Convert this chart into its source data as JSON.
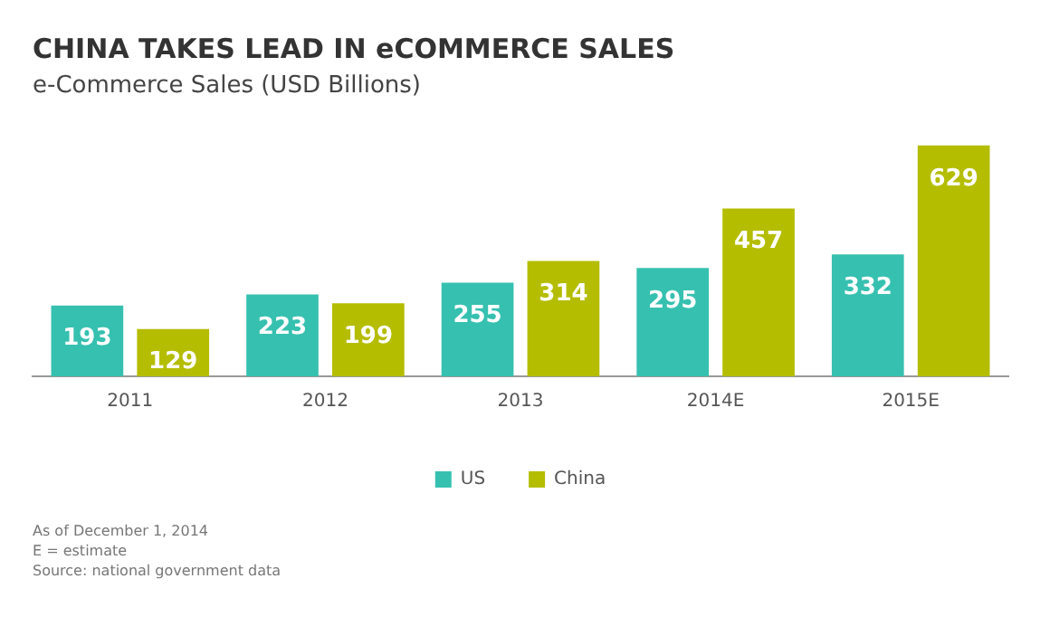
{
  "chart_data": {
    "type": "bar",
    "title": "CHINA TAKES LEAD IN eCOMMERCE SALES",
    "subtitle": "e-Commerce Sales (USD Billions)",
    "categories": [
      "2011",
      "2012",
      "2013",
      "2014E",
      "2015E"
    ],
    "series": [
      {
        "name": "US",
        "color": "#36c0b0",
        "values": [
          193,
          223,
          255,
          295,
          332
        ]
      },
      {
        "name": "China",
        "color": "#b4bd00",
        "values": [
          129,
          199,
          314,
          457,
          629
        ]
      }
    ],
    "data_labels": true,
    "grid": false,
    "legend": "bottom",
    "annotations": [
      "As of December 1, 2014",
      "E = estimate",
      "Source: national government data"
    ]
  }
}
